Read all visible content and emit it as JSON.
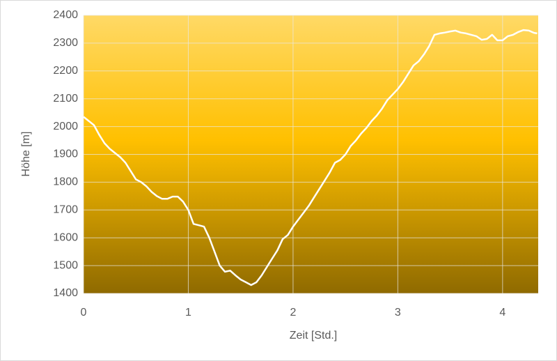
{
  "chart_data": {
    "type": "line",
    "x_label": "Zeit [Std.]",
    "y_label": "Höhe [m]",
    "x": [
      0,
      0.05,
      0.1,
      0.15,
      0.2,
      0.25,
      0.3,
      0.35,
      0.4,
      0.45,
      0.5,
      0.55,
      0.6,
      0.65,
      0.7,
      0.75,
      0.8,
      0.85,
      0.9,
      0.95,
      1.0,
      1.05,
      1.1,
      1.15,
      1.2,
      1.25,
      1.3,
      1.35,
      1.4,
      1.45,
      1.5,
      1.55,
      1.6,
      1.65,
      1.7,
      1.75,
      1.8,
      1.85,
      1.9,
      1.95,
      2.0,
      2.05,
      2.1,
      2.15,
      2.2,
      2.25,
      2.3,
      2.35,
      2.4,
      2.45,
      2.5,
      2.55,
      2.6,
      2.65,
      2.7,
      2.75,
      2.8,
      2.85,
      2.9,
      2.95,
      3.0,
      3.05,
      3.1,
      3.15,
      3.2,
      3.25,
      3.3,
      3.35,
      3.4,
      3.45,
      3.5,
      3.55,
      3.6,
      3.65,
      3.7,
      3.75,
      3.8,
      3.85,
      3.9,
      3.95,
      4.0,
      4.05,
      4.1,
      4.15,
      4.2,
      4.25,
      4.3,
      4.33
    ],
    "values": [
      2035,
      2020,
      2005,
      1970,
      1940,
      1920,
      1905,
      1890,
      1870,
      1840,
      1810,
      1800,
      1785,
      1765,
      1750,
      1740,
      1740,
      1748,
      1748,
      1730,
      1700,
      1650,
      1645,
      1640,
      1600,
      1550,
      1500,
      1478,
      1482,
      1465,
      1450,
      1440,
      1430,
      1440,
      1465,
      1495,
      1525,
      1555,
      1595,
      1610,
      1640,
      1665,
      1690,
      1715,
      1745,
      1775,
      1805,
      1835,
      1870,
      1880,
      1900,
      1930,
      1950,
      1975,
      1995,
      2020,
      2040,
      2065,
      2095,
      2115,
      2135,
      2160,
      2190,
      2220,
      2235,
      2260,
      2290,
      2330,
      2335,
      2338,
      2342,
      2345,
      2338,
      2335,
      2330,
      2325,
      2312,
      2315,
      2330,
      2310,
      2310,
      2325,
      2330,
      2340,
      2347,
      2345,
      2337,
      2335
    ],
    "color": "#ffffff",
    "xlim": [
      0,
      4.34
    ],
    "xticks": [
      0,
      1,
      2,
      3,
      4
    ],
    "ylim": [
      1400,
      2400
    ],
    "yticks": [
      1400,
      1500,
      1600,
      1700,
      1800,
      1900,
      2000,
      2100,
      2200,
      2300,
      2400
    ],
    "grid": true
  }
}
